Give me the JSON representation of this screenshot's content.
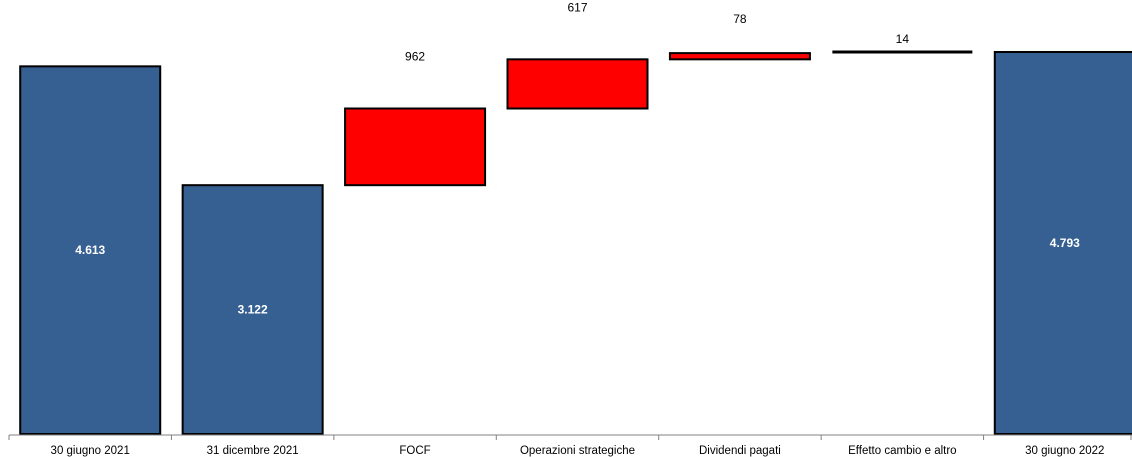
{
  "chart_data": {
    "type": "bar",
    "subtype": "waterfall",
    "categories": [
      "30 giugno 2021",
      "31 dicembre 2021",
      "FOCF",
      "Operazioni strategiche",
      "Dividendi pagati",
      "Effetto cambio e altro",
      "30 giugno 2022"
    ],
    "values": [
      4613,
      3122,
      962,
      617,
      78,
      14,
      4793
    ],
    "value_labels": [
      "4.613",
      "3.122",
      "962",
      "617",
      "78",
      "14",
      "4.793"
    ],
    "bar_kinds": [
      "total",
      "total",
      "increase",
      "increase",
      "increase",
      "increase",
      "total"
    ],
    "title": "",
    "xlabel": "",
    "ylabel": "",
    "ylim": [
      0,
      5300
    ],
    "grid": false,
    "legend": "none",
    "colors": {
      "total": "#366092",
      "increase": "#ff0000",
      "outline": "#000000",
      "axis": "#808080"
    }
  }
}
